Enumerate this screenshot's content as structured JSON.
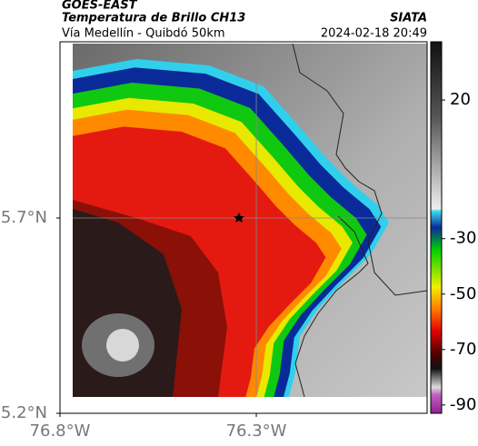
{
  "header": {
    "satellite": "GOES-EAST",
    "product": "Temperatura de Brillo CH13",
    "source": "SIATA",
    "region": "Vía Medellín - Quibdó 50km",
    "datetime": "2024-02-18 20:49"
  },
  "map": {
    "lonlim": [
      -76.8,
      -75.865
    ],
    "latlim": [
      5.2,
      6.151
    ],
    "xticks": [
      {
        "value": -76.8,
        "label": "76.8°W"
      },
      {
        "value": -76.3,
        "label": "76.3°W"
      }
    ],
    "yticks": [
      {
        "value": 5.2,
        "label": "5.2°N"
      },
      {
        "value": 5.7,
        "label": "5.7°N"
      }
    ],
    "grid": true
  },
  "colorbar": {
    "lim": [
      -93,
      41
    ],
    "ticks": [
      20,
      -30,
      -50,
      -70,
      -90
    ]
  }
}
